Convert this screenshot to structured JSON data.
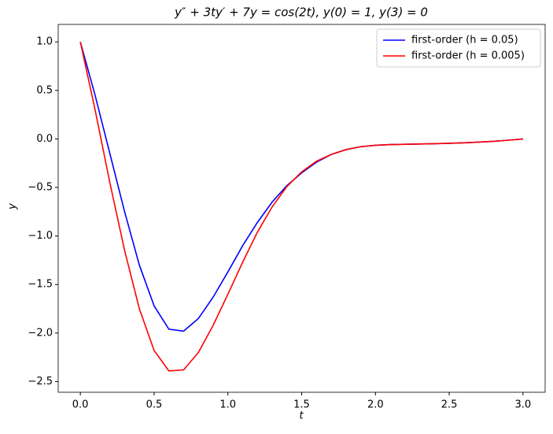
{
  "chart_data": {
    "type": "line",
    "title": "y″ + 3ty′ + 7y = cos(2t), y(0) = 1, y(3) = 0",
    "xlabel": "t",
    "ylabel": "y",
    "x": [
      0,
      0.1,
      0.2,
      0.3,
      0.4,
      0.5,
      0.6,
      0.7,
      0.8,
      0.9,
      1.0,
      1.1,
      1.2,
      1.3,
      1.4,
      1.5,
      1.6,
      1.7,
      1.8,
      1.9,
      2.0,
      2.1,
      2.2,
      2.3,
      2.4,
      2.5,
      2.6,
      2.7,
      2.8,
      2.9,
      3.0
    ],
    "series": [
      {
        "name": "first-order (h = 0.05)",
        "color": "#0000ff",
        "values": [
          1.0,
          0.45,
          -0.15,
          -0.75,
          -1.3,
          -1.72,
          -1.96,
          -1.98,
          -1.85,
          -1.63,
          -1.37,
          -1.1,
          -0.86,
          -0.65,
          -0.48,
          -0.35,
          -0.24,
          -0.16,
          -0.11,
          -0.08,
          -0.065,
          -0.058,
          -0.055,
          -0.052,
          -0.049,
          -0.045,
          -0.04,
          -0.033,
          -0.025,
          -0.013,
          0
        ]
      },
      {
        "name": "first-order (h = 0.005)",
        "color": "#ff0000",
        "values": [
          1.0,
          0.3,
          -0.45,
          -1.15,
          -1.75,
          -2.18,
          -2.39,
          -2.38,
          -2.2,
          -1.92,
          -1.6,
          -1.27,
          -0.96,
          -0.7,
          -0.49,
          -0.34,
          -0.23,
          -0.16,
          -0.11,
          -0.08,
          -0.065,
          -0.058,
          -0.055,
          -0.052,
          -0.049,
          -0.045,
          -0.04,
          -0.033,
          -0.025,
          -0.013,
          0
        ]
      }
    ],
    "xlim": [
      -0.15,
      3.15
    ],
    "ylim": [
      -2.61,
      1.18
    ],
    "xticks": [
      {
        "value": 0,
        "label": "0.0"
      },
      {
        "value": 0.5,
        "label": "0.5"
      },
      {
        "value": 1,
        "label": "1.0"
      },
      {
        "value": 1.5,
        "label": "1.5"
      },
      {
        "value": 2,
        "label": "2.0"
      },
      {
        "value": 2.5,
        "label": "2.5"
      },
      {
        "value": 3,
        "label": "3.0"
      }
    ],
    "yticks": [
      {
        "value": -2.5,
        "label": "−2.5"
      },
      {
        "value": -2,
        "label": "−2.0"
      },
      {
        "value": -1.5,
        "label": "−1.5"
      },
      {
        "value": -1,
        "label": "−1.0"
      },
      {
        "value": -0.5,
        "label": "−0.5"
      },
      {
        "value": 0,
        "label": "0.0"
      },
      {
        "value": 0.5,
        "label": "0.5"
      },
      {
        "value": 1,
        "label": "1.0"
      }
    ],
    "legend": "upper right"
  }
}
